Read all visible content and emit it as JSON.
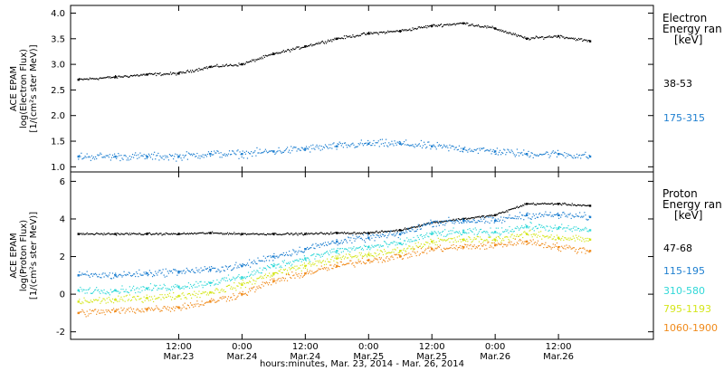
{
  "chart_data": [
    {
      "type": "scatter",
      "panel": "electron",
      "ylabel": [
        "ACE EPAM",
        "log(Electron Flux)",
        "[1/(cm²s ster MeV)]"
      ],
      "ylim": [
        0.9,
        4.15
      ],
      "yticks": [
        1.0,
        1.5,
        2.0,
        2.5,
        3.0,
        3.5,
        4.0
      ],
      "ytick_labels": [
        "1.0",
        "1.5",
        "2.0",
        "2.5",
        "3.0",
        "3.5",
        "4.0"
      ],
      "legend_title": [
        "Electron",
        "Energy ran",
        "[keV]"
      ],
      "x_unit": "hours since 2014-03-23 00:00",
      "series": [
        {
          "name": "38-53",
          "color": "#000000",
          "x": [
            -7,
            0,
            6,
            12,
            18,
            24,
            30,
            36,
            42,
            48,
            54,
            60,
            66,
            72,
            78,
            84,
            90
          ],
          "y": [
            2.7,
            2.75,
            2.8,
            2.82,
            2.95,
            3.0,
            3.2,
            3.35,
            3.5,
            3.6,
            3.65,
            3.75,
            3.8,
            3.7,
            3.5,
            3.55,
            3.45
          ]
        },
        {
          "name": "175-315",
          "color": "#1e7fd0",
          "x": [
            -7,
            0,
            6,
            12,
            18,
            24,
            30,
            36,
            42,
            48,
            54,
            60,
            66,
            72,
            78,
            84,
            90
          ],
          "y": [
            1.2,
            1.2,
            1.2,
            1.2,
            1.25,
            1.25,
            1.3,
            1.35,
            1.4,
            1.45,
            1.45,
            1.4,
            1.35,
            1.3,
            1.25,
            1.25,
            1.2
          ]
        }
      ]
    },
    {
      "type": "scatter",
      "panel": "proton",
      "ylabel": [
        "ACE EPAM",
        "log(Proton Flux)",
        "[1/(cm²s ster MeV)]"
      ],
      "ylim": [
        -2.4,
        6.5
      ],
      "yticks": [
        -2,
        0,
        2,
        4,
        6
      ],
      "ytick_labels": [
        "-2",
        "0",
        "2",
        "4",
        "6"
      ],
      "legend_title": [
        "Proton",
        "Energy ran",
        "[keV]"
      ],
      "x_unit": "hours since 2014-03-23 00:00",
      "series": [
        {
          "name": "47-68",
          "color": "#000000",
          "x": [
            -7,
            0,
            6,
            12,
            18,
            24,
            30,
            36,
            42,
            48,
            54,
            60,
            66,
            72,
            78,
            84,
            90
          ],
          "y": [
            3.2,
            3.2,
            3.2,
            3.2,
            3.25,
            3.2,
            3.2,
            3.2,
            3.25,
            3.25,
            3.4,
            3.8,
            4.0,
            4.2,
            4.8,
            4.8,
            4.7
          ]
        },
        {
          "name": "115-195",
          "color": "#1e7fd0",
          "x": [
            -7,
            0,
            6,
            12,
            18,
            24,
            30,
            36,
            42,
            48,
            54,
            60,
            66,
            72,
            78,
            84,
            90
          ],
          "y": [
            1.0,
            1.0,
            1.1,
            1.2,
            1.3,
            1.5,
            2.0,
            2.4,
            2.8,
            3.0,
            3.2,
            3.8,
            3.9,
            3.9,
            4.2,
            4.2,
            4.1
          ]
        },
        {
          "name": "310-580",
          "color": "#30d8d8",
          "x": [
            -7,
            0,
            6,
            12,
            18,
            24,
            30,
            36,
            42,
            48,
            54,
            60,
            66,
            72,
            78,
            84,
            90
          ],
          "y": [
            0.2,
            0.2,
            0.3,
            0.4,
            0.6,
            0.9,
            1.5,
            1.9,
            2.3,
            2.5,
            2.7,
            3.2,
            3.3,
            3.3,
            3.6,
            3.5,
            3.4
          ]
        },
        {
          "name": "795-1193",
          "color": "#d4e61a",
          "x": [
            -7,
            0,
            6,
            12,
            18,
            24,
            30,
            36,
            42,
            48,
            54,
            60,
            66,
            72,
            78,
            84,
            90
          ],
          "y": [
            -0.4,
            -0.3,
            -0.2,
            -0.1,
            0.1,
            0.5,
            1.1,
            1.5,
            1.9,
            2.1,
            2.3,
            2.8,
            2.9,
            2.9,
            3.2,
            3.0,
            2.9
          ]
        },
        {
          "name": "1060-1900",
          "color": "#f08a1a",
          "x": [
            -7,
            0,
            6,
            12,
            18,
            24,
            30,
            36,
            42,
            48,
            54,
            60,
            66,
            72,
            78,
            84,
            90
          ],
          "y": [
            -1.0,
            -0.9,
            -0.8,
            -0.7,
            -0.4,
            0.0,
            0.7,
            1.1,
            1.5,
            1.8,
            2.0,
            2.4,
            2.5,
            2.6,
            2.8,
            2.5,
            2.3
          ]
        }
      ]
    }
  ],
  "x_axis": {
    "xlim": [
      -8.5,
      102
    ],
    "ticks": [
      12,
      24,
      36,
      48,
      60,
      72,
      84
    ],
    "tick_labels": [
      [
        "12:00",
        "Mar.23"
      ],
      [
        "0:00",
        "Mar.24"
      ],
      [
        "12:00",
        "Mar.24"
      ],
      [
        "0:00",
        "Mar.25"
      ],
      [
        "12:00",
        "Mar.25"
      ],
      [
        "0:00",
        "Mar.26"
      ],
      [
        "12:00",
        "Mar.26"
      ]
    ],
    "title": "hours:minutes, Mar. 23, 2014 - Mar. 26, 2014"
  }
}
